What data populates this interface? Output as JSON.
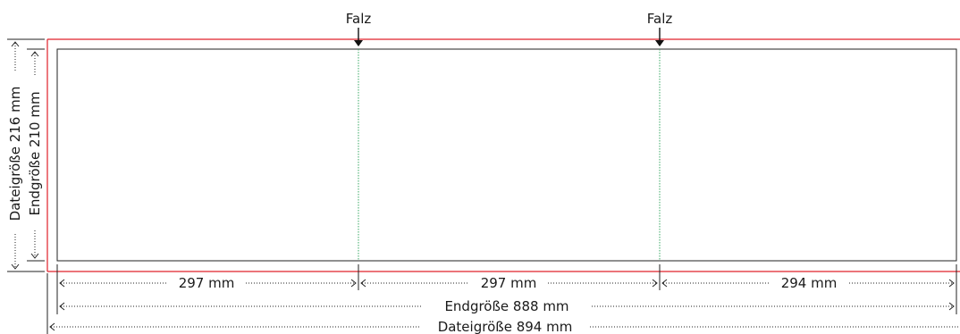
{
  "fold_labels": [
    "Falz",
    "Falz"
  ],
  "panels": [
    {
      "label": "297 mm"
    },
    {
      "label": "297 mm"
    },
    {
      "label": "294 mm"
    }
  ],
  "end_width": "Endgröße 888 mm",
  "file_width": "Dateigröße 894 mm",
  "end_height": "Endgröße 210 mm",
  "file_height": "Dateigröße 216 mm",
  "colors": {
    "bleed": "#e0202a",
    "trim": "#222222",
    "fold": "#3aa864"
  }
}
